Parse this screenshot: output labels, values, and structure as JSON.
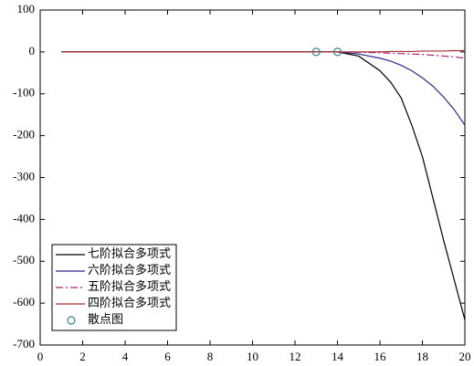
{
  "chart_data": {
    "type": "line",
    "x": [
      1,
      3,
      5,
      7,
      9,
      11,
      12,
      13,
      14,
      15,
      16,
      16.5,
      17,
      17.5,
      18,
      18.5,
      19,
      19.5,
      20
    ],
    "series": [
      {
        "name": "七阶拟合多项式",
        "color": "#000000",
        "style": "solid",
        "values": [
          0,
          0,
          0,
          0,
          0,
          0,
          0,
          0,
          0,
          -10,
          -45,
          -72,
          -110,
          -175,
          -250,
          -350,
          -450,
          -545,
          -640
        ]
      },
      {
        "name": "六阶拟合多项式",
        "color": "#2b2b8c",
        "style": "solid",
        "values": [
          0,
          0,
          0,
          0,
          0,
          0,
          0,
          0,
          0,
          -5,
          -15,
          -22,
          -32,
          -45,
          -62,
          -82,
          -108,
          -138,
          -175
        ]
      },
      {
        "name": "五阶拟合多项式",
        "color": "#b0207a",
        "style": "dashdot",
        "values": [
          0,
          0,
          0,
          0,
          0,
          0,
          0,
          0,
          0,
          -1,
          -2,
          -3,
          -4,
          -5,
          -6,
          -8,
          -10,
          -12,
          -15
        ]
      },
      {
        "name": "四阶拟合多项式",
        "color": "#a03030",
        "style": "solid",
        "values": [
          0,
          0,
          0,
          0,
          0,
          0,
          0,
          0,
          0,
          0,
          0,
          1,
          1,
          1,
          2,
          2,
          2,
          3,
          3
        ]
      },
      {
        "name": "散点图",
        "color": "#3a8080",
        "type": "scatter",
        "x": [
          13,
          14
        ],
        "values": [
          0,
          0
        ]
      }
    ],
    "xlim": [
      0,
      20
    ],
    "xticks": [
      0,
      2,
      4,
      6,
      8,
      10,
      12,
      14,
      16,
      18,
      20
    ],
    "ylim": [
      -700,
      100
    ],
    "yticks": [
      -700,
      -600,
      -500,
      -400,
      -300,
      -200,
      -100,
      0,
      100
    ],
    "legend": "lower left"
  }
}
